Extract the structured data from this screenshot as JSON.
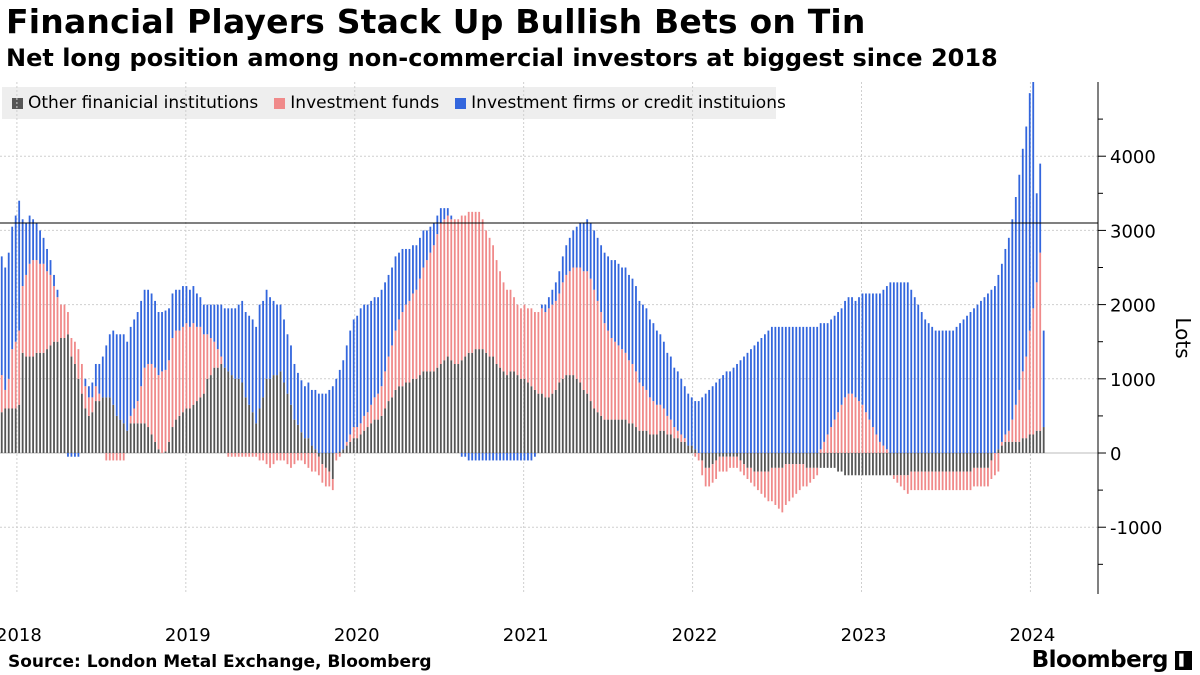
{
  "title": "Financial Players Stack Up Bullish Bets on Tin",
  "subtitle": "Net long position among non-commercial investors at biggest since 2018",
  "legend": [
    {
      "label": "Other finanicial institutions",
      "color": "#555555"
    },
    {
      "label": "Investment funds",
      "color": "#f08a8a"
    },
    {
      "label": "Investment firms or credit instituions",
      "color": "#3366dd"
    }
  ],
  "source": "Source: London Metal Exchange, Bloomberg",
  "brand": "Bloomberg",
  "brand_icon": "▌",
  "chart_data": {
    "type": "bar",
    "stacked": true,
    "title": "Financial Players Stack Up Bullish Bets on Tin",
    "ylabel": "Lots",
    "ylim": [
      -1900,
      5000
    ],
    "yticks": [
      -1000,
      0,
      1000,
      2000,
      3000,
      4000
    ],
    "reference_line": 3100,
    "x_start": 2017.9,
    "x_end": 2024.4,
    "xticks": [
      2018,
      2019,
      2020,
      2021,
      2022,
      2023,
      2024
    ],
    "resolution": "weekly",
    "series": [
      {
        "name": "Other finanicial institutions",
        "values": [
          550,
          600,
          600,
          600,
          600,
          650,
          1350,
          1300,
          1300,
          1300,
          1350,
          1350,
          1350,
          1400,
          1450,
          1500,
          1500,
          1550,
          1550,
          1600,
          1300,
          1200,
          1000,
          800,
          600,
          500,
          550,
          700,
          700,
          750,
          750,
          750,
          650,
          500,
          450,
          400,
          300,
          400,
          400,
          400,
          400,
          400,
          350,
          250,
          150,
          50,
          0,
          20,
          150,
          350,
          450,
          500,
          550,
          600,
          600,
          650,
          700,
          750,
          800,
          1000,
          1050,
          1150,
          1150,
          1200,
          1150,
          1100,
          1050,
          1000,
          1000,
          950,
          750,
          650,
          550,
          400,
          600,
          750,
          1000,
          1000,
          1050,
          1050,
          1100,
          950,
          800,
          650,
          450,
          380,
          280,
          200,
          200,
          100,
          50,
          -50,
          -150,
          -200,
          -250,
          -350,
          0,
          20,
          50,
          100,
          150,
          200,
          200,
          250,
          300,
          350,
          400,
          450,
          450,
          500,
          600,
          700,
          750,
          850,
          900,
          900,
          950,
          950,
          1000,
          1000,
          1050,
          1100,
          1100,
          1100,
          1100,
          1150,
          1200,
          1250,
          1300,
          1250,
          1200,
          1200,
          1250,
          1300,
          1350,
          1350,
          1400,
          1400,
          1400,
          1350,
          1300,
          1300,
          1200,
          1150,
          1100,
          1050,
          1100,
          1100,
          1050,
          1000,
          1000,
          950,
          900,
          850,
          800,
          800,
          750,
          750,
          800,
          850,
          950,
          1000,
          1050,
          1050,
          1050,
          1000,
          950,
          850,
          800,
          700,
          600,
          550,
          500,
          450,
          450,
          450,
          450,
          450,
          450,
          450,
          400,
          400,
          350,
          300,
          300,
          300,
          250,
          250,
          250,
          300,
          300,
          250,
          250,
          200,
          200,
          150,
          150,
          100,
          100,
          50,
          0,
          -100,
          -200,
          -200,
          -150,
          -100,
          -50,
          -50,
          -50,
          -50,
          -50,
          -50,
          -100,
          -150,
          -200,
          -200,
          -250,
          -250,
          -250,
          -250,
          -250,
          -200,
          -200,
          -200,
          -200,
          -150,
          -150,
          -150,
          -150,
          -150,
          -150,
          -200,
          -200,
          -200,
          -200,
          -200,
          -200,
          -200,
          -200,
          -200,
          -250,
          -250,
          -300,
          -300,
          -300,
          -300,
          -300,
          -300,
          -300,
          -300,
          -300,
          -300,
          -300,
          -300,
          -300,
          -300,
          -300,
          -300,
          -300,
          -300,
          -300,
          -250,
          -250,
          -250,
          -250,
          -250,
          -250,
          -250,
          -250,
          -250,
          -250,
          -250,
          -250,
          -250,
          -250,
          -250,
          -250,
          -250,
          -250,
          -200,
          -200,
          -200,
          -200,
          -200,
          -100,
          0,
          50,
          100,
          150,
          150,
          150,
          150,
          150,
          200,
          200,
          250,
          250,
          300,
          300,
          350
        ]
      },
      {
        "name": "Investment funds",
        "values": [
          500,
          250,
          400,
          800,
          900,
          1000,
          900,
          1100,
          1250,
          1300,
          1250,
          1200,
          1200,
          1050,
          950,
          750,
          600,
          450,
          450,
          300,
          250,
          300,
          400,
          400,
          300,
          250,
          200,
          200,
          100,
          0,
          -100,
          -100,
          -100,
          -100,
          -100,
          -100,
          0,
          100,
          200,
          300,
          500,
          750,
          850,
          950,
          1000,
          1000,
          1100,
          1100,
          1100,
          1200,
          1200,
          1150,
          1150,
          1150,
          1100,
          1100,
          1000,
          950,
          800,
          600,
          500,
          350,
          250,
          100,
          0,
          -50,
          -50,
          -50,
          -50,
          -50,
          -50,
          -50,
          -50,
          -50,
          -100,
          -100,
          -150,
          -200,
          -150,
          -100,
          -100,
          -100,
          -150,
          -200,
          -150,
          -100,
          -100,
          -150,
          -200,
          -250,
          -250,
          -250,
          -250,
          -250,
          -200,
          -150,
          -100,
          -50,
          0,
          50,
          100,
          150,
          150,
          150,
          200,
          200,
          250,
          300,
          350,
          400,
          500,
          600,
          700,
          800,
          900,
          1000,
          1050,
          1100,
          1150,
          1200,
          1300,
          1400,
          1500,
          1600,
          1700,
          1800,
          1900,
          1900,
          1900,
          1900,
          1950,
          1950,
          1950,
          1900,
          1900,
          1900,
          1850,
          1850,
          1750,
          1650,
          1600,
          1500,
          1400,
          1300,
          1200,
          1150,
          1100,
          1000,
          950,
          950,
          1000,
          1000,
          1050,
          1050,
          1100,
          1150,
          1150,
          1200,
          1200,
          1200,
          1200,
          1300,
          1350,
          1400,
          1450,
          1500,
          1550,
          1600,
          1650,
          1650,
          1600,
          1500,
          1400,
          1300,
          1200,
          1100,
          1050,
          1000,
          950,
          900,
          850,
          800,
          750,
          650,
          600,
          550,
          500,
          450,
          400,
          350,
          300,
          250,
          200,
          150,
          100,
          100,
          50,
          0,
          0,
          -50,
          -100,
          -200,
          -250,
          -250,
          -250,
          -250,
          -200,
          -200,
          -200,
          -150,
          -150,
          -150,
          -150,
          -150,
          -150,
          -200,
          -200,
          -250,
          -300,
          -350,
          -400,
          -450,
          -500,
          -550,
          -600,
          -550,
          -500,
          -450,
          -400,
          -350,
          -300,
          -250,
          -200,
          -150,
          -100,
          50,
          150,
          250,
          350,
          450,
          550,
          650,
          750,
          800,
          800,
          750,
          700,
          650,
          550,
          450,
          350,
          250,
          150,
          100,
          50,
          0,
          -50,
          -100,
          -150,
          -200,
          -250,
          -250,
          -250,
          -250,
          -250,
          -250,
          -250,
          -250,
          -250,
          -250,
          -250,
          -250,
          -250,
          -250,
          -250,
          -250,
          -250,
          -250,
          -250,
          -250,
          -250,
          -250,
          -250,
          -250,
          -250,
          -300,
          -250,
          50,
          100,
          150,
          300,
          500,
          700,
          900,
          1100,
          1400,
          1700,
          2000,
          2400
        ]
      },
      {
        "name": "Investment firms or credit instituions",
        "values": [
          1600,
          1650,
          1700,
          1650,
          1700,
          1750,
          900,
          700,
          650,
          550,
          500,
          450,
          350,
          300,
          200,
          150,
          100,
          0,
          0,
          -50,
          -50,
          -50,
          -50,
          0,
          100,
          150,
          200,
          300,
          400,
          550,
          700,
          850,
          1000,
          1100,
          1150,
          1200,
          1200,
          1200,
          1200,
          1200,
          1150,
          1050,
          1000,
          950,
          900,
          850,
          800,
          800,
          700,
          600,
          550,
          550,
          550,
          500,
          500,
          500,
          450,
          400,
          400,
          400,
          450,
          500,
          600,
          700,
          800,
          850,
          900,
          950,
          1000,
          1100,
          1150,
          1200,
          1250,
          1300,
          1400,
          1300,
          1200,
          1100,
          1000,
          950,
          900,
          850,
          800,
          800,
          750,
          700,
          700,
          700,
          750,
          750,
          800,
          800,
          800,
          800,
          850,
          900,
          1000,
          1100,
          1200,
          1300,
          1400,
          1450,
          1500,
          1550,
          1500,
          1450,
          1400,
          1350,
          1300,
          1300,
          1200,
          1100,
          1050,
          1000,
          900,
          850,
          750,
          700,
          650,
          600,
          550,
          500,
          400,
          350,
          300,
          250,
          200,
          150,
          100,
          50,
          0,
          0,
          -50,
          -50,
          -100,
          -100,
          -100,
          -100,
          -100,
          -100,
          -100,
          -100,
          -100,
          -100,
          -100,
          -100,
          -100,
          -100,
          -100,
          -100,
          -100,
          -100,
          -100,
          -50,
          0,
          50,
          100,
          150,
          200,
          250,
          300,
          350,
          400,
          450,
          500,
          550,
          600,
          650,
          700,
          750,
          800,
          850,
          900,
          950,
          1000,
          1050,
          1100,
          1100,
          1100,
          1150,
          1150,
          1150,
          1150,
          1100,
          1100,
          1100,
          1050,
          1050,
          1000,
          950,
          900,
          850,
          850,
          800,
          800,
          750,
          700,
          700,
          650,
          650,
          700,
          750,
          800,
          850,
          900,
          950,
          1000,
          1050,
          1100,
          1100,
          1150,
          1200,
          1250,
          1300,
          1350,
          1400,
          1450,
          1500,
          1550,
          1600,
          1650,
          1700,
          1700,
          1700,
          1700,
          1700,
          1700,
          1700,
          1700,
          1700,
          1700,
          1700,
          1700,
          1700,
          1700,
          1700,
          1600,
          1500,
          1450,
          1400,
          1350,
          1300,
          1300,
          1300,
          1300,
          1300,
          1400,
          1500,
          1600,
          1700,
          1800,
          1900,
          2000,
          2100,
          2200,
          2300,
          2300,
          2300,
          2300,
          2300,
          2300,
          2200,
          2100,
          2000,
          1900,
          1800,
          1750,
          1700,
          1650,
          1650,
          1650,
          1650,
          1650,
          1650,
          1700,
          1750,
          1800,
          1850,
          1900,
          1950,
          2000,
          2050,
          2100,
          2150,
          2200,
          2250,
          2350,
          2400,
          2500,
          2600,
          2700,
          2800,
          2900,
          3000,
          3100,
          3200,
          3300,
          1200,
          1200,
          1300,
          1700
        ]
      }
    ]
  }
}
